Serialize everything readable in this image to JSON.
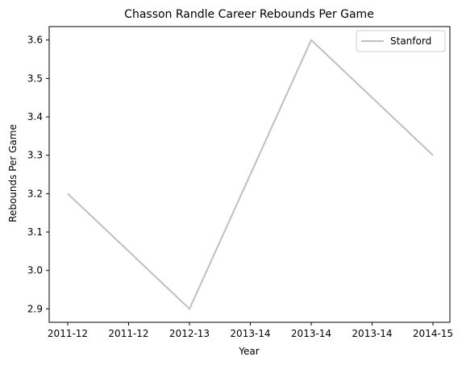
{
  "chart_data": {
    "type": "line",
    "title": "Chasson Randle Career Rebounds Per Game",
    "xlabel": "Year",
    "ylabel": "Rebounds Per Game",
    "x_tick_labels": [
      "2011-12",
      "2011-12",
      "2012-13",
      "2013-14",
      "2013-14",
      "2013-14",
      "2014-15"
    ],
    "x": [
      "2011-12",
      "2012-13",
      "2013-14",
      "2014-15"
    ],
    "series": [
      {
        "name": "Stanford",
        "values": [
          3.2,
          2.9,
          3.6,
          3.3
        ],
        "color": "#bfbfbf"
      }
    ],
    "y_ticks": [
      2.9,
      3.0,
      3.1,
      3.2,
      3.3,
      3.4,
      3.5,
      3.6
    ],
    "ylim": [
      2.865,
      3.635
    ],
    "legend_position": "top-right",
    "grid": false
  }
}
